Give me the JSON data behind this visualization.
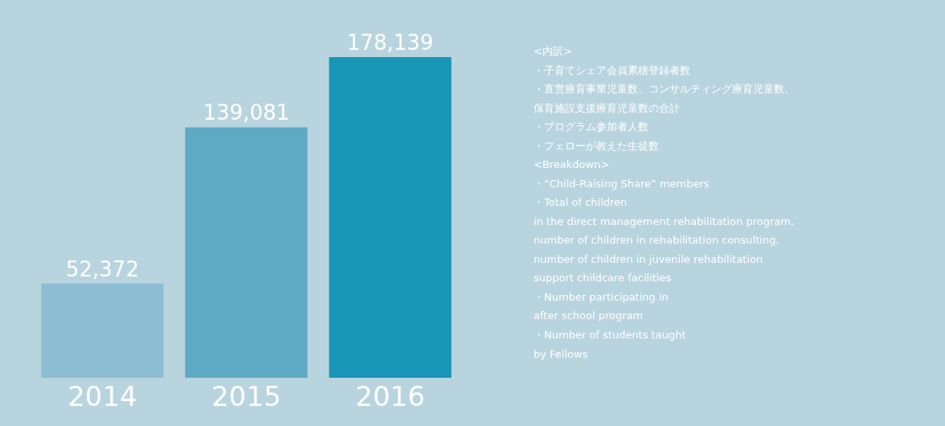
{
  "chart_data": {
    "type": "bar",
    "categories": [
      "2014",
      "2015",
      "2016"
    ],
    "values": [
      52372,
      139081,
      178139
    ],
    "colors": [
      "#8dbdd3",
      "#5ea9c4",
      "#1896b5"
    ],
    "value_labels": [
      "52,372",
      "139,081",
      "178,139"
    ],
    "tick_labels": "x",
    "grid": false,
    "legend": false,
    "annotations": [
      "<内訳>",
      "・子育てシェア会員累積登録者数",
      "・直営療育事業児童数、コンサルティング療育児童数、",
      "保育施設支援療育児童数の合計",
      "・プログラム参加者人数",
      "・フェローが教えた生徒数",
      "<Breakdown>",
      "・“Child-Raising Share” members",
      "・Total of children",
      "in the direct management rehabilitation program,",
      "number of children in rehabilitation consulting,",
      "number of children in juvenile rehabilitation",
      "support childcare facilities",
      "・Number participating in",
      "after school program",
      "・Number of students taught",
      "by Fellows"
    ]
  }
}
